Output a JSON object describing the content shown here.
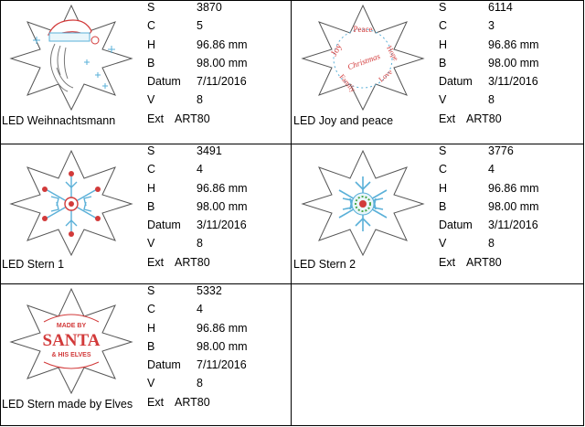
{
  "labels": {
    "s": "S",
    "c": "C",
    "h": "H",
    "b": "B",
    "datum": "Datum",
    "v": "V",
    "ext": "Ext"
  },
  "designs": [
    {
      "name": "LED Weihnachtsmann",
      "s": "3870",
      "c": "5",
      "h": "96.86 mm",
      "b": "98.00 mm",
      "datum": "7/11/2016",
      "v": "8",
      "ext": "ART80",
      "thumb_icon": "santa-star-icon"
    },
    {
      "name": "LED Joy and peace",
      "s": "6114",
      "c": "3",
      "h": "96.86 mm",
      "b": "98.00 mm",
      "datum": "3/11/2016",
      "v": "8",
      "ext": "ART80",
      "thumb_icon": "joy-peace-star-icon",
      "thumb_text": [
        "Peace",
        "Hope",
        "Joy",
        "Christmas",
        "Love",
        "Family"
      ]
    },
    {
      "name": "LED Stern 1",
      "s": "3491",
      "c": "4",
      "h": "96.86 mm",
      "b": "98.00 mm",
      "datum": "3/11/2016",
      "v": "8",
      "ext": "ART80",
      "thumb_icon": "snowflake-star-icon"
    },
    {
      "name": "LED Stern 2",
      "s": "3776",
      "c": "4",
      "h": "96.86 mm",
      "b": "98.00 mm",
      "datum": "3/11/2016",
      "v": "8",
      "ext": "ART80",
      "thumb_icon": "snowflake-wreath-star-icon"
    },
    {
      "name": "LED Stern made by Elves",
      "s": "5332",
      "c": "4",
      "h": "96.86 mm",
      "b": "98.00 mm",
      "datum": "7/11/2016",
      "v": "8",
      "ext": "ART80",
      "thumb_icon": "santa-text-star-icon",
      "thumb_text": [
        "MADE BY",
        "SANTA",
        "& HIS ELVES"
      ]
    }
  ],
  "colors": {
    "grid_line": "#000000",
    "outline": "#555555",
    "accent_red": "#d23a3a",
    "accent_blue": "#5ab0d8"
  }
}
